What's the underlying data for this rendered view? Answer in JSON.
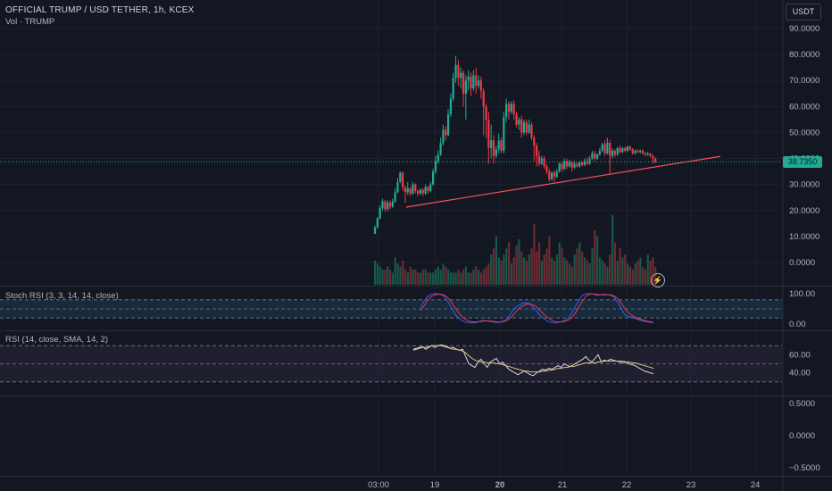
{
  "header": {
    "title": "OFFICIAL TRUMP / USD TETHER, 1h, KCEX",
    "volume_label": "Vol · TRUMP"
  },
  "currency_button": "USDT",
  "last_price": "38.7350",
  "indicators": {
    "stoch_label": "Stoch RSI (3, 3, 14, 14, close)",
    "rsi_label": "RSI (14, close, SMA, 14, 2)"
  },
  "lightning_icon": "lightning-icon",
  "colors": {
    "background": "#131722",
    "up": "#22ab94",
    "down": "#f23645",
    "trendline": "#f7525f",
    "stoch_k": "#2962ff",
    "stoch_d": "#f23645",
    "rsi": "#d1d4dc",
    "rsi_sma": "#e0c08a",
    "stoch_band": "#1e3a55",
    "rsi_band": "#2a2438"
  },
  "chart_data": [
    {
      "type": "candlestick",
      "name": "price",
      "x_ticks": [
        "03:00",
        "19",
        "20",
        "21",
        "22",
        "23",
        "24"
      ],
      "y_ticks": [
        "90.0000",
        "80.0000",
        "70.0000",
        "60.0000",
        "50.0000",
        "40.0000",
        "30.0000",
        "20.0000",
        "10.0000",
        "0.0000"
      ],
      "ylim": [
        -4,
        94
      ],
      "last_value": 38.735,
      "trendline": {
        "from": [
          0,
          21.3
        ],
        "to": [
          119,
          40.8
        ]
      },
      "candles": [
        [
          0,
          11.0,
          13.5,
          11.0,
          14.2
        ],
        [
          1,
          13.5,
          17.0,
          13.0,
          17.5
        ],
        [
          2,
          17.0,
          21.0,
          16.5,
          22.0
        ],
        [
          3,
          21.0,
          23.5,
          20.0,
          24.5
        ],
        [
          4,
          23.5,
          20.5,
          19.5,
          24.0
        ],
        [
          5,
          20.5,
          23.0,
          19.8,
          24.0
        ],
        [
          6,
          23.0,
          21.5,
          20.5,
          23.8
        ],
        [
          7,
          21.5,
          23.5,
          21.0,
          24.5
        ],
        [
          8,
          23.5,
          27.0,
          23.0,
          28.5
        ],
        [
          9,
          27.0,
          31.0,
          26.5,
          32.5
        ],
        [
          10,
          31.0,
          34.5,
          30.5,
          35.0
        ],
        [
          11,
          34.5,
          29.0,
          27.5,
          35.0
        ],
        [
          12,
          29.0,
          27.0,
          23.0,
          29.5
        ],
        [
          13,
          27.0,
          28.5,
          26.0,
          31.0
        ],
        [
          14,
          28.5,
          26.5,
          25.5,
          29.0
        ],
        [
          15,
          26.5,
          30.0,
          26.0,
          31.0
        ],
        [
          16,
          30.0,
          27.5,
          26.5,
          30.5
        ],
        [
          17,
          27.5,
          26.5,
          25.5,
          28.0
        ],
        [
          18,
          26.5,
          28.0,
          26.0,
          28.5
        ],
        [
          19,
          28.0,
          26.5,
          25.5,
          28.5
        ],
        [
          20,
          26.5,
          29.0,
          26.0,
          30.0
        ],
        [
          21,
          29.0,
          27.5,
          26.5,
          29.5
        ],
        [
          22,
          27.5,
          30.0,
          27.0,
          31.0
        ],
        [
          23,
          30.0,
          35.0,
          29.5,
          36.0
        ],
        [
          24,
          35.0,
          39.0,
          34.0,
          41.0
        ],
        [
          25,
          39.0,
          41.5,
          38.0,
          43.0
        ],
        [
          26,
          41.5,
          46.0,
          41.0,
          48.0
        ],
        [
          27,
          46.0,
          51.0,
          45.0,
          53.0
        ],
        [
          28,
          51.0,
          49.0,
          47.0,
          52.5
        ],
        [
          29,
          49.0,
          57.0,
          48.5,
          59.0
        ],
        [
          30,
          57.0,
          63.0,
          56.0,
          65.0
        ],
        [
          31,
          63.0,
          71.0,
          62.0,
          73.0
        ],
        [
          32,
          71.0,
          76.0,
          69.0,
          79.5
        ],
        [
          33,
          76.0,
          71.0,
          68.0,
          78.0
        ],
        [
          34,
          71.0,
          73.0,
          67.0,
          75.0
        ],
        [
          35,
          73.0,
          65.0,
          60.0,
          74.0
        ],
        [
          36,
          65.0,
          70.0,
          55.0,
          72.0
        ],
        [
          37,
          70.0,
          71.5,
          66.0,
          74.0
        ],
        [
          38,
          71.5,
          67.0,
          64.0,
          73.0
        ],
        [
          39,
          67.0,
          72.0,
          66.0,
          74.0
        ],
        [
          40,
          72.0,
          68.0,
          65.0,
          75.0
        ],
        [
          41,
          68.0,
          70.0,
          67.0,
          72.0
        ],
        [
          42,
          70.0,
          66.0,
          63.0,
          71.5
        ],
        [
          43,
          66.0,
          60.0,
          49.0,
          67.0
        ],
        [
          44,
          60.0,
          55.0,
          48.0,
          61.0
        ],
        [
          45,
          55.0,
          44.0,
          38.0,
          58.0
        ],
        [
          46,
          44.0,
          47.0,
          40.0,
          53.0
        ],
        [
          47,
          47.0,
          41.0,
          38.0,
          49.0
        ],
        [
          48,
          41.0,
          43.5,
          40.0,
          45.0
        ],
        [
          49,
          43.5,
          47.0,
          42.0,
          49.5
        ],
        [
          50,
          47.0,
          43.0,
          42.0,
          48.0
        ],
        [
          51,
          43.0,
          56.0,
          42.0,
          58.0
        ],
        [
          52,
          56.0,
          61.0,
          54.0,
          63.0
        ],
        [
          53,
          61.0,
          58.0,
          55.0,
          62.0
        ],
        [
          54,
          58.0,
          61.0,
          57.0,
          62.0
        ],
        [
          55,
          61.0,
          57.0,
          55.0,
          62.5
        ],
        [
          56,
          57.0,
          53.0,
          52.0,
          58.0
        ],
        [
          57,
          53.0,
          55.0,
          51.0,
          56.0
        ],
        [
          58,
          55.0,
          50.0,
          48.0,
          56.5
        ],
        [
          59,
          50.0,
          54.0,
          49.0,
          55.0
        ],
        [
          60,
          54.0,
          50.0,
          49.0,
          55.0
        ],
        [
          61,
          50.0,
          53.0,
          49.5,
          55.0
        ],
        [
          62,
          53.0,
          48.0,
          47.0,
          54.0
        ],
        [
          63,
          48.0,
          45.0,
          39.0,
          49.0
        ],
        [
          64,
          45.0,
          41.0,
          37.0,
          46.0
        ],
        [
          65,
          41.0,
          38.0,
          37.0,
          43.0
        ],
        [
          66,
          38.0,
          40.0,
          37.5,
          41.0
        ],
        [
          67,
          40.0,
          37.0,
          36.0,
          41.0
        ],
        [
          68,
          37.0,
          35.0,
          34.0,
          38.0
        ],
        [
          69,
          35.0,
          32.0,
          31.0,
          36.0
        ],
        [
          70,
          32.0,
          34.5,
          31.5,
          35.0
        ],
        [
          71,
          34.5,
          33.0,
          31.0,
          35.5
        ],
        [
          72,
          33.0,
          35.0,
          32.5,
          36.0
        ],
        [
          73,
          35.0,
          38.0,
          34.5,
          38.5
        ],
        [
          74,
          38.0,
          36.0,
          35.0,
          38.5
        ],
        [
          75,
          36.0,
          39.0,
          35.5,
          40.0
        ],
        [
          76,
          39.0,
          37.0,
          36.0,
          40.0
        ],
        [
          77,
          37.0,
          38.5,
          36.5,
          39.5
        ],
        [
          78,
          38.5,
          36.5,
          35.0,
          39.0
        ],
        [
          79,
          36.5,
          38.0,
          36.0,
          39.0
        ],
        [
          80,
          38.0,
          37.0,
          36.5,
          38.5
        ],
        [
          81,
          37.0,
          38.5,
          36.5,
          39.0
        ],
        [
          82,
          38.5,
          37.5,
          37.0,
          39.0
        ],
        [
          83,
          37.5,
          39.0,
          37.0,
          40.0
        ],
        [
          84,
          39.0,
          38.0,
          37.5,
          40.5
        ],
        [
          85,
          38.0,
          40.0,
          37.5,
          41.0
        ],
        [
          86,
          40.0,
          42.0,
          39.5,
          43.0
        ],
        [
          87,
          42.0,
          40.0,
          39.0,
          43.0
        ],
        [
          88,
          40.0,
          41.5,
          39.5,
          42.0
        ],
        [
          89,
          41.5,
          43.0,
          41.0,
          44.0
        ],
        [
          90,
          43.0,
          45.5,
          42.5,
          46.0
        ],
        [
          91,
          45.5,
          42.0,
          41.0,
          47.0
        ],
        [
          92,
          42.0,
          46.0,
          41.5,
          48.0
        ],
        [
          93,
          46.0,
          41.0,
          34.0,
          47.0
        ],
        [
          94,
          41.0,
          43.0,
          40.0,
          44.0
        ],
        [
          95,
          43.0,
          41.5,
          40.5,
          43.5
        ],
        [
          96,
          41.5,
          44.0,
          41.0,
          44.5
        ],
        [
          97,
          44.0,
          42.5,
          42.0,
          45.0
        ],
        [
          98,
          42.5,
          44.0,
          42.0,
          44.5
        ],
        [
          99,
          44.0,
          43.0,
          42.5,
          44.5
        ],
        [
          100,
          43.0,
          44.5,
          42.5,
          45.0
        ],
        [
          101,
          44.5,
          43.5,
          43.0,
          45.0
        ],
        [
          102,
          43.5,
          42.0,
          41.5,
          44.0
        ],
        [
          103,
          42.0,
          43.0,
          41.5,
          43.5
        ],
        [
          104,
          43.0,
          42.5,
          42.0,
          43.5
        ],
        [
          105,
          42.5,
          43.0,
          42.0,
          43.5
        ],
        [
          106,
          43.0,
          42.0,
          41.5,
          43.5
        ],
        [
          107,
          42.0,
          41.5,
          41.0,
          42.5
        ],
        [
          108,
          41.5,
          42.0,
          41.0,
          42.5
        ],
        [
          109,
          42.0,
          41.0,
          40.5,
          42.0
        ],
        [
          110,
          41.0,
          40.0,
          38.0,
          41.5
        ],
        [
          111,
          40.0,
          38.735,
          38.2,
          40.5
        ]
      ]
    },
    {
      "type": "bar",
      "name": "volume",
      "values": [
        8,
        7,
        6,
        5,
        5,
        6,
        5,
        4,
        9,
        7,
        6,
        8,
        5,
        4,
        6,
        5,
        5,
        4,
        4,
        5,
        5,
        4,
        4,
        4,
        5,
        6,
        5,
        7,
        6,
        5,
        4,
        4,
        4,
        5,
        4,
        5,
        6,
        4,
        4,
        5,
        6,
        5,
        4,
        5,
        6,
        7,
        10,
        12,
        16,
        9,
        8,
        10,
        12,
        14,
        7,
        9,
        13,
        15,
        11,
        9,
        8,
        10,
        12,
        20,
        11,
        14,
        8,
        10,
        12,
        16,
        9,
        8,
        10,
        14,
        12,
        9,
        8,
        7,
        6,
        10,
        12,
        14,
        11,
        9,
        8,
        7,
        12,
        18,
        16,
        9,
        8,
        7,
        6,
        10,
        23,
        14,
        8,
        12,
        9,
        10,
        7,
        6,
        5,
        7,
        8,
        9,
        6,
        5,
        10,
        8,
        9,
        6
      ]
    },
    {
      "type": "line",
      "name": "Stoch RSI",
      "y_ticks": [
        "100.00",
        "0.00"
      ],
      "ylim": [
        0,
        100
      ],
      "bands": [
        80,
        50,
        20
      ],
      "series": [
        {
          "values": [
            55,
            75,
            90,
            98,
            100,
            100,
            96,
            88,
            70,
            48,
            30,
            18,
            10,
            6,
            4,
            4,
            6,
            10,
            12,
            10,
            8,
            6,
            5,
            8,
            12,
            25,
            42,
            55,
            62,
            68,
            70,
            66,
            55,
            42,
            28,
            18,
            10,
            6,
            4,
            5,
            8,
            12,
            20,
            38,
            60,
            80,
            95,
            100,
            100,
            98,
            95,
            96,
            98,
            97,
            94,
            88,
            72,
            50,
            30,
            24,
            22,
            18,
            14,
            10,
            8,
            6,
            4
          ]
        },
        {
          "values": [
            45,
            60,
            78,
            90,
            96,
            98,
            98,
            94,
            84,
            68,
            50,
            35,
            22,
            14,
            9,
            7,
            7,
            8,
            10,
            11,
            10,
            8,
            7,
            7,
            9,
            15,
            26,
            40,
            52,
            60,
            65,
            67,
            63,
            55,
            44,
            32,
            22,
            14,
            9,
            7,
            7,
            9,
            13,
            22,
            38,
            58,
            78,
            92,
            98,
            99,
            98,
            96,
            96,
            97,
            96,
            92,
            84,
            68,
            50,
            36,
            28,
            22,
            18,
            14,
            10,
            8,
            6
          ]
        }
      ]
    },
    {
      "type": "line",
      "name": "RSI",
      "y_ticks": [
        "60.00",
        "40.00"
      ],
      "ylim": [
        20,
        80
      ],
      "bands": [
        70,
        50,
        30
      ],
      "series": [
        {
          "values": [
            66,
            67,
            68,
            69,
            66,
            68,
            70,
            68,
            70,
            71,
            70,
            69,
            67,
            68,
            66,
            65,
            66,
            58,
            50,
            48,
            46,
            52,
            55,
            50,
            46,
            52,
            54,
            56,
            50,
            52,
            48,
            44,
            42,
            40,
            38,
            40,
            42,
            40,
            38,
            37,
            40,
            42,
            44,
            43,
            45,
            44,
            46,
            48,
            46,
            50,
            48,
            47,
            49,
            51,
            53,
            55,
            58,
            54,
            52,
            56,
            60,
            52,
            54,
            53,
            55,
            54,
            53,
            52,
            51,
            52,
            50,
            49,
            48,
            46,
            44,
            42,
            41,
            40,
            39
          ]
        },
        {
          "values": [
            65,
            66,
            67,
            68,
            68,
            69,
            70,
            70,
            70,
            70,
            69,
            68,
            67,
            66,
            66,
            65,
            64,
            62,
            59,
            56,
            54,
            53,
            52,
            52,
            51,
            51,
            51,
            50,
            50,
            49,
            48,
            47,
            46,
            45,
            44,
            43,
            42,
            42,
            41,
            41,
            41,
            41,
            42,
            42,
            43,
            43,
            44,
            45,
            45,
            46,
            46,
            47,
            47,
            48,
            49,
            50,
            51,
            51,
            51,
            51,
            52,
            52,
            53,
            53,
            53,
            53,
            53,
            53,
            53,
            52,
            52,
            51,
            51,
            50,
            49,
            48,
            47,
            46,
            45
          ]
        }
      ]
    },
    {
      "type": "line",
      "name": "empty pane",
      "y_ticks": [
        "0.5000",
        "0.0000",
        "−0.5000"
      ],
      "ylim": [
        -0.7,
        0.75
      ],
      "series": []
    }
  ]
}
